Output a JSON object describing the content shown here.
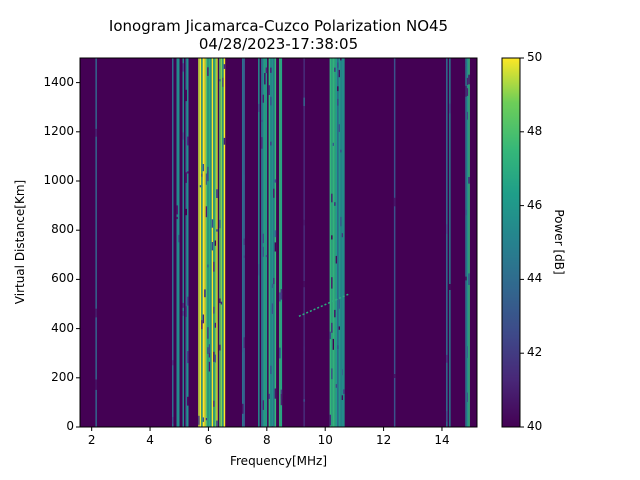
{
  "chart_data": {
    "type": "heatmap",
    "title": "Ionogram Jicamarca-Cuzco Polarization NO45",
    "subtitle": "04/28/2023-17:38:05",
    "xlabel": "Frequency[MHz]",
    "ylabel": "Virtual Distance[Km]",
    "xlim": [
      1.6,
      15.2
    ],
    "ylim": [
      0,
      1500
    ],
    "x_ticks": [
      2,
      4,
      6,
      8,
      10,
      12,
      14
    ],
    "y_ticks": [
      0,
      200,
      400,
      600,
      800,
      1000,
      1200,
      1400
    ],
    "colormap": "viridis",
    "colorbar": {
      "label": "Power [dB]",
      "range": [
        40,
        50
      ],
      "ticks": [
        40,
        42,
        44,
        46,
        48,
        50
      ]
    },
    "bands": [
      {
        "center": 2.2,
        "width": 0.25,
        "level": 44,
        "density": 0.35
      },
      {
        "center": 2.7,
        "width": 0.15,
        "level": 42,
        "density": 0.2
      },
      {
        "center": 4.3,
        "width": 0.15,
        "level": 44,
        "density": 0.3
      },
      {
        "center": 5.0,
        "width": 0.6,
        "level": 46,
        "density": 0.55
      },
      {
        "center": 6.1,
        "width": 0.9,
        "level": 50,
        "density": 0.92
      },
      {
        "center": 7.3,
        "width": 0.3,
        "level": 44,
        "density": 0.35
      },
      {
        "center": 8.1,
        "width": 0.8,
        "level": 47,
        "density": 0.65
      },
      {
        "center": 9.3,
        "width": 0.3,
        "level": 42,
        "density": 0.3
      },
      {
        "center": 10.4,
        "width": 0.5,
        "level": 47,
        "density": 0.7
      },
      {
        "center": 12.4,
        "width": 0.3,
        "level": 43,
        "density": 0.3
      },
      {
        "center": 14.2,
        "width": 0.12,
        "level": 46,
        "density": 0.75
      },
      {
        "center": 14.9,
        "width": 0.2,
        "level": 47,
        "density": 0.8
      }
    ],
    "trace": {
      "x": [
        9.1,
        10.8
      ],
      "y": [
        450,
        540
      ]
    },
    "background_level": 40
  }
}
